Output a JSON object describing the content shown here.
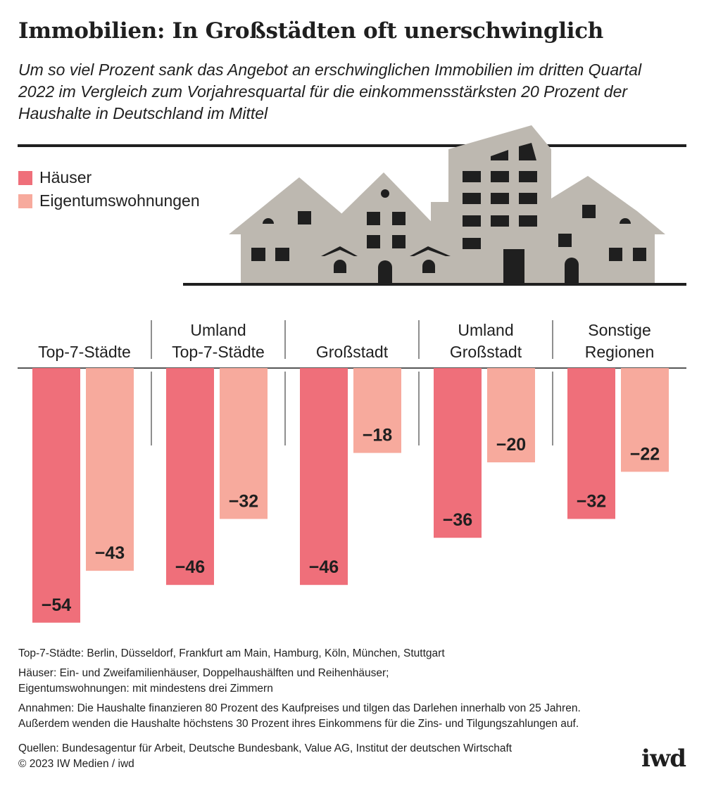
{
  "header": {
    "title": "Immobilien: In Großstädten oft unerschwinglich",
    "subtitle": "Um so viel Prozent sank das Angebot an erschwinglichen Immobilien im dritten Quartal 2022 im Vergleich zum Vorjahresquartal für die einkommensstärksten 20 Prozent der Haushalte in Deutschland im Mittel"
  },
  "legend": [
    {
      "label": "Häuser",
      "color": "#ef6f7a"
    },
    {
      "label": "Eigentumswohnungen",
      "color": "#f7aa9d"
    }
  ],
  "chart_data": {
    "type": "bar",
    "categories": [
      [
        "Top-7-Städte"
      ],
      [
        "Umland",
        "Top-7-Städte"
      ],
      [
        "Großstadt"
      ],
      [
        "Umland",
        "Großstadt"
      ],
      [
        "Sonstige",
        "Regionen"
      ]
    ],
    "series": [
      {
        "name": "Häuser",
        "color": "#ef6f7a",
        "values": [
          -54,
          -46,
          -46,
          -36,
          -32
        ]
      },
      {
        "name": "Eigentumswohnungen",
        "color": "#f7aa9d",
        "values": [
          -43,
          -32,
          -18,
          -20,
          -22
        ]
      }
    ],
    "ylim": [
      -54,
      0
    ]
  },
  "notes": {
    "line1": "Top-7-Städte: Berlin, Düsseldorf, Frankfurt am Main, Hamburg, Köln, München, Stuttgart",
    "line2": "Häuser: Ein- und Zweifamilienhäuser, Doppelhaushälften und Reihenhäuser;",
    "line3": "Eigentumswohnungen: mit mindestens drei Zimmern",
    "line4": "Annahmen: Die Haushalte finanzieren 80 Prozent des Kaufpreises und tilgen das Darlehen innerhalb von 25 Jahren.",
    "line5": "Außerdem wenden die Haushalte höchstens 30 Prozent ihres Einkommens für die Zins- und Tilgungszahlungen auf.",
    "line6": "Quellen: Bundesagentur für Arbeit, Deutsche Bundesbank, Value AG, Institut der deutschen Wirtschaft",
    "line7": "© 2023 IW Medien / iwd"
  },
  "brand": "iwd"
}
